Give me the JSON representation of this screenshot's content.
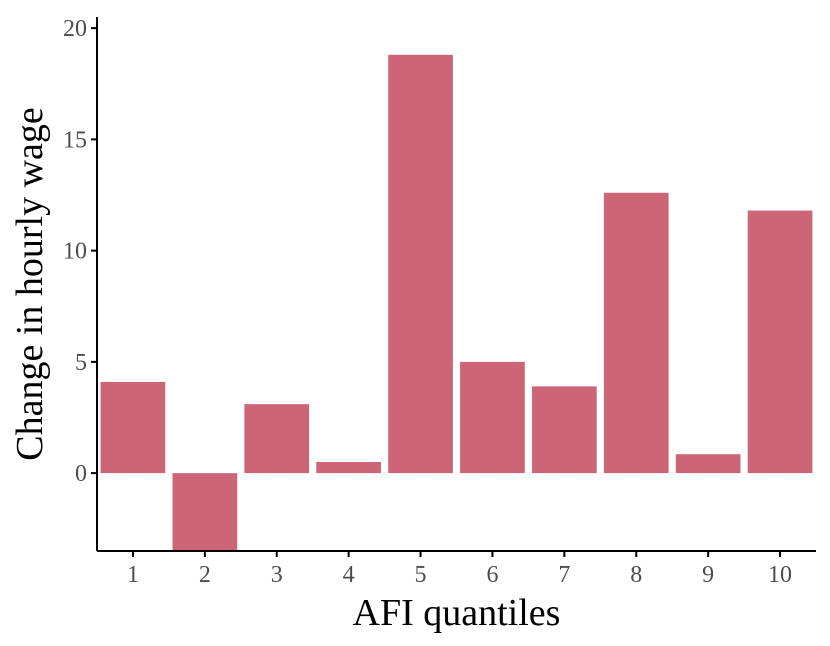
{
  "chart_data": {
    "type": "bar",
    "title": "",
    "xlabel": "AFI quantiles",
    "ylabel": "Change in hourly wage",
    "categories": [
      "1",
      "2",
      "3",
      "4",
      "5",
      "6",
      "7",
      "8",
      "9",
      "10"
    ],
    "values": [
      4.1,
      -3.5,
      3.1,
      0.5,
      18.8,
      5.0,
      3.9,
      12.6,
      0.85,
      11.8
    ],
    "ylim": [
      -3.5,
      20.5
    ],
    "yticks": [
      "0",
      "5",
      "10",
      "15",
      "20"
    ],
    "grid": false,
    "legend": "none",
    "bar_color": "#cc6677"
  }
}
